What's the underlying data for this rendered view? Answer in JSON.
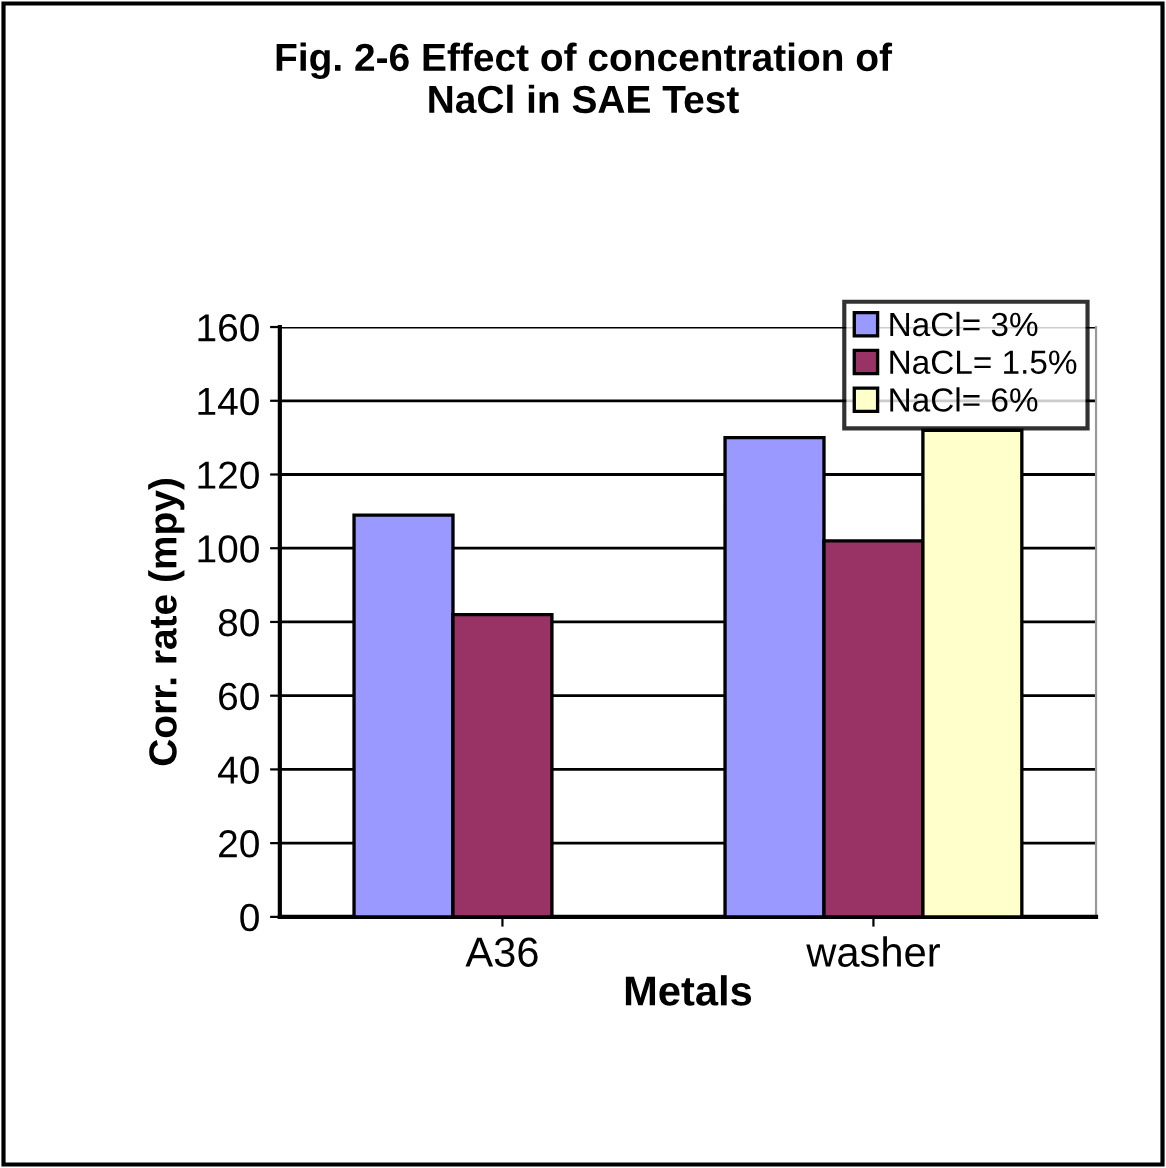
{
  "chart_data": {
    "type": "bar",
    "title": "Fig. 2-6 Effect of concentration of\nNaCl in SAE Test",
    "xlabel": "Metals",
    "ylabel": "Corr. rate (mpy)",
    "categories": [
      "A36",
      "washer"
    ],
    "series": [
      {
        "name": "NaCl= 3%",
        "color": "#9999ff",
        "values": [
          109,
          130
        ]
      },
      {
        "name": "NaCL= 1.5%",
        "color": "#993366",
        "values": [
          82,
          102
        ]
      },
      {
        "name": "NaCl= 6%",
        "color": "#ffffcc",
        "values": [
          null,
          132
        ]
      }
    ],
    "ylim": [
      0,
      160
    ],
    "yticks": [
      0,
      20,
      40,
      60,
      80,
      100,
      120,
      140,
      160
    ],
    "grid": "y",
    "legend": "top right"
  }
}
